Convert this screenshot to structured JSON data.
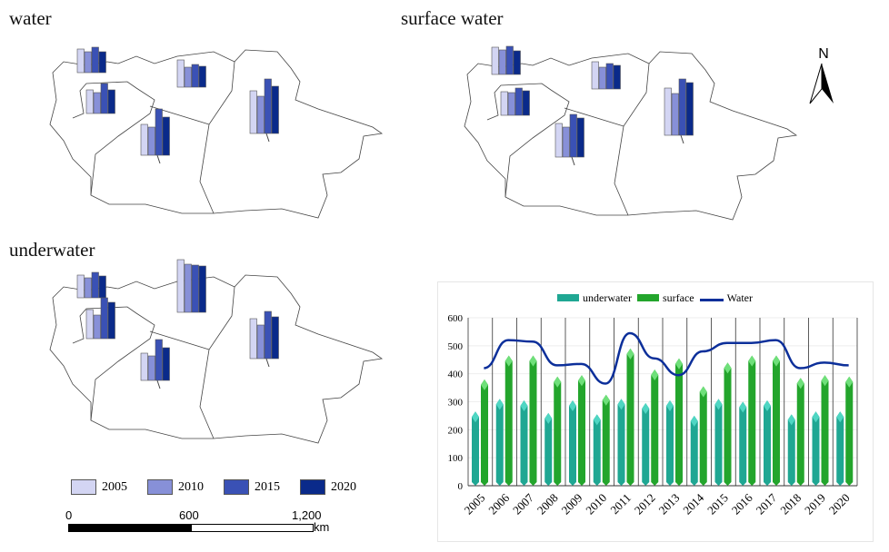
{
  "panels": [
    {
      "title": "water",
      "groups": [
        [
          26,
          23,
          28,
          23
        ],
        [
          26,
          23,
          33,
          26
        ],
        [
          30,
          22,
          25,
          23
        ],
        [
          34,
          31,
          51,
          42
        ],
        [
          47,
          41,
          60,
          52
        ]
      ]
    },
    {
      "title": "surface water",
      "groups": [
        [
          30,
          27,
          31,
          26
        ],
        [
          26,
          25,
          30,
          27
        ],
        [
          30,
          24,
          28,
          26
        ],
        [
          37,
          33,
          47,
          43
        ],
        [
          52,
          46,
          62,
          58
        ]
      ]
    },
    {
      "title": "underwater",
      "groups": [
        [
          25,
          22,
          28,
          24
        ],
        [
          32,
          26,
          45,
          40
        ],
        [
          58,
          53,
          52,
          51
        ],
        [
          30,
          27,
          45,
          36
        ],
        [
          44,
          37,
          52,
          46
        ]
      ]
    }
  ],
  "map_legend": {
    "years": [
      "2005",
      "2010",
      "2015",
      "2020"
    ],
    "colors": [
      "#d3d5f3",
      "#8790d8",
      "#3a51b5",
      "#0a2a8a"
    ]
  },
  "scale_bar": {
    "ticks": [
      "0",
      "600",
      "1,200"
    ],
    "unit": "km"
  },
  "north_label": "N",
  "chart_data": {
    "type": "bar",
    "title": "",
    "categories": [
      "2005",
      "2006",
      "2007",
      "2008",
      "2009",
      "2010",
      "2011",
      "2012",
      "2013",
      "2014",
      "2015",
      "2016",
      "2017",
      "2018",
      "2019",
      "2020"
    ],
    "series": [
      {
        "name": "underwater",
        "type": "bar",
        "color": "#1fa793",
        "values": [
          265,
          310,
          305,
          260,
          305,
          255,
          310,
          295,
          305,
          250,
          310,
          300,
          305,
          255,
          265,
          265
        ]
      },
      {
        "name": "surface",
        "type": "bar",
        "color": "#23a52c",
        "values": [
          380,
          465,
          465,
          390,
          395,
          325,
          490,
          415,
          455,
          355,
          440,
          465,
          465,
          385,
          395,
          390
        ]
      },
      {
        "name": "Water",
        "type": "line",
        "color": "#0c2f9a",
        "values": [
          420,
          520,
          515,
          430,
          435,
          365,
          545,
          455,
          395,
          480,
          510,
          510,
          520,
          420,
          440,
          430
        ]
      }
    ],
    "yticks": [
      "0",
      "100",
      "200",
      "300",
      "400",
      "500",
      "600"
    ],
    "ylim": [
      0,
      600
    ],
    "grid": true,
    "legend": "top-center"
  }
}
